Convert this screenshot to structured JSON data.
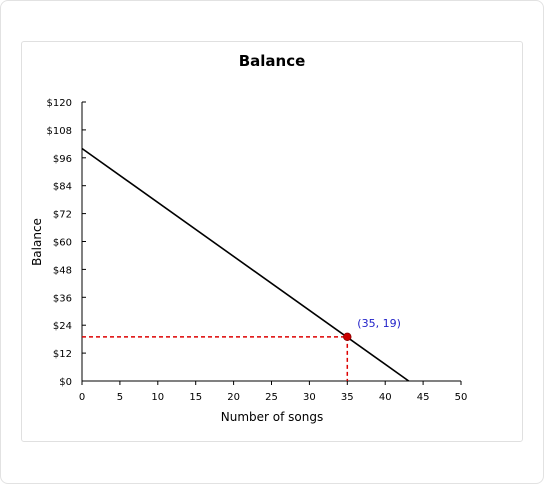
{
  "chart_data": {
    "type": "line",
    "title": "Balance",
    "xlabel": "Number of songs",
    "ylabel": "Balance",
    "xlim": [
      0,
      50
    ],
    "ylim": [
      0,
      120
    ],
    "x_ticks": [
      "0",
      "5",
      "10",
      "15",
      "20",
      "25",
      "30",
      "35",
      "40",
      "45",
      "50"
    ],
    "y_ticks": [
      "$0",
      "$12",
      "$24",
      "$36",
      "$48",
      "$60",
      "$72",
      "$84",
      "$96",
      "$108",
      "$120"
    ],
    "grid": false,
    "series": [
      {
        "x": [
          0,
          43.1
        ],
        "y": [
          100,
          0
        ],
        "color": "#000000"
      }
    ],
    "highlight_point": {
      "x": 35,
      "y": 19,
      "label": "(35, 19)",
      "color": "#cc0000",
      "guide_color": "#dd0000",
      "label_color": "#1f1fc8"
    }
  }
}
